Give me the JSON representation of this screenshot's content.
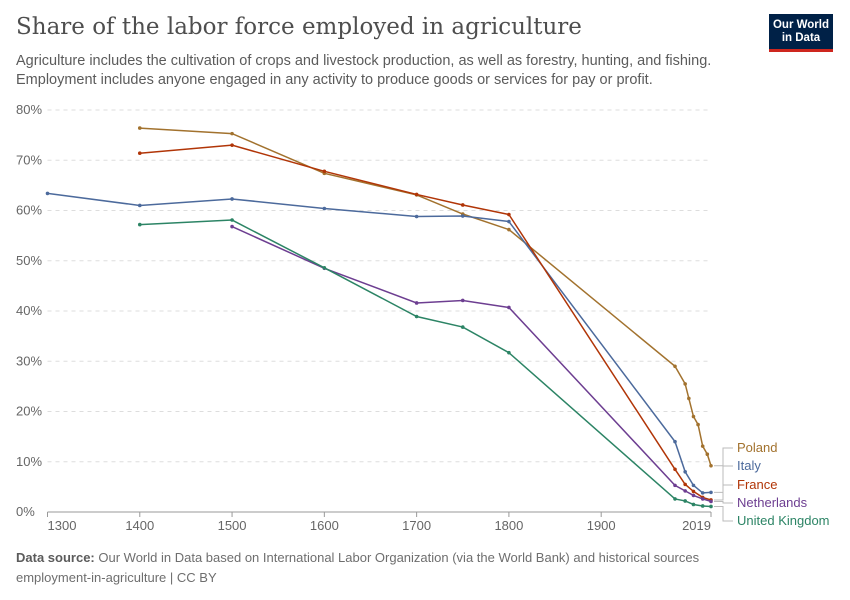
{
  "header": {
    "title": "Share of the labor force employed in agriculture",
    "subtitle": "Agriculture includes the cultivation of crops and livestock production, as well as forestry, hunting, and fishing. Employment includes anyone engaged in any activity to produce goods or services for pay or profit.",
    "logo": "Our World in Data"
  },
  "footer": {
    "source_label": "Data source:",
    "source": "Our World in Data based on International Labor Organization (via the World Bank) and historical sources",
    "slug": "employment-in-agriculture | CC BY"
  },
  "chart_data": {
    "type": "line",
    "title": "Share of the labor force employed in agriculture",
    "xlim": [
      1300,
      2019
    ],
    "ylim": [
      0,
      80
    ],
    "x_ticks": [
      "1300",
      "1400",
      "1500",
      "1600",
      "1700",
      "1800",
      "1900",
      "2019"
    ],
    "y_ticks": [
      "0%",
      "10%",
      "20%",
      "30%",
      "40%",
      "50%",
      "60%",
      "70%",
      "80%"
    ],
    "grid": "horizontal dashed",
    "legend": "right, inline labels",
    "series": [
      {
        "name": "Poland",
        "color": "#a2722e",
        "points": [
          [
            1400,
            76.4
          ],
          [
            1500,
            75.3
          ],
          [
            1600,
            67.4
          ],
          [
            1700,
            63.1
          ],
          [
            1750,
            59.3
          ],
          [
            1800,
            56.2
          ],
          [
            1980,
            29.0
          ],
          [
            1991,
            25.5
          ],
          [
            1995,
            22.6
          ],
          [
            2000,
            19.0
          ],
          [
            2005,
            17.4
          ],
          [
            2010,
            13.1
          ],
          [
            2015,
            11.5
          ],
          [
            2019,
            9.2
          ]
        ]
      },
      {
        "name": "Italy",
        "color": "#4c6a9c",
        "points": [
          [
            1300,
            63.4
          ],
          [
            1400,
            61.0
          ],
          [
            1500,
            62.3
          ],
          [
            1600,
            60.4
          ],
          [
            1700,
            58.8
          ],
          [
            1750,
            58.9
          ],
          [
            1800,
            57.8
          ],
          [
            1980,
            14.0
          ],
          [
            1991,
            8.0
          ],
          [
            2000,
            5.3
          ],
          [
            2010,
            3.8
          ],
          [
            2019,
            3.9
          ]
        ]
      },
      {
        "name": "France",
        "color": "#b13507",
        "points": [
          [
            1400,
            71.4
          ],
          [
            1500,
            73.0
          ],
          [
            1600,
            67.8
          ],
          [
            1700,
            63.2
          ],
          [
            1750,
            61.1
          ],
          [
            1800,
            59.2
          ],
          [
            1980,
            8.5
          ],
          [
            1991,
            5.5
          ],
          [
            2000,
            4.1
          ],
          [
            2010,
            2.9
          ],
          [
            2019,
            2.4
          ]
        ]
      },
      {
        "name": "Netherlands",
        "color": "#6d3e91",
        "points": [
          [
            1500,
            56.8
          ],
          [
            1600,
            48.5
          ],
          [
            1700,
            41.6
          ],
          [
            1750,
            42.1
          ],
          [
            1800,
            40.7
          ],
          [
            1980,
            5.3
          ],
          [
            1991,
            4.2
          ],
          [
            2000,
            3.3
          ],
          [
            2010,
            2.6
          ],
          [
            2019,
            2.1
          ]
        ]
      },
      {
        "name": "United Kingdom",
        "color": "#2c8465",
        "points": [
          [
            1400,
            57.2
          ],
          [
            1500,
            58.1
          ],
          [
            1600,
            48.6
          ],
          [
            1700,
            38.9
          ],
          [
            1750,
            36.8
          ],
          [
            1800,
            31.7
          ],
          [
            1980,
            2.6
          ],
          [
            1991,
            2.2
          ],
          [
            2000,
            1.5
          ],
          [
            2010,
            1.2
          ],
          [
            2019,
            1.1
          ]
        ]
      }
    ]
  }
}
